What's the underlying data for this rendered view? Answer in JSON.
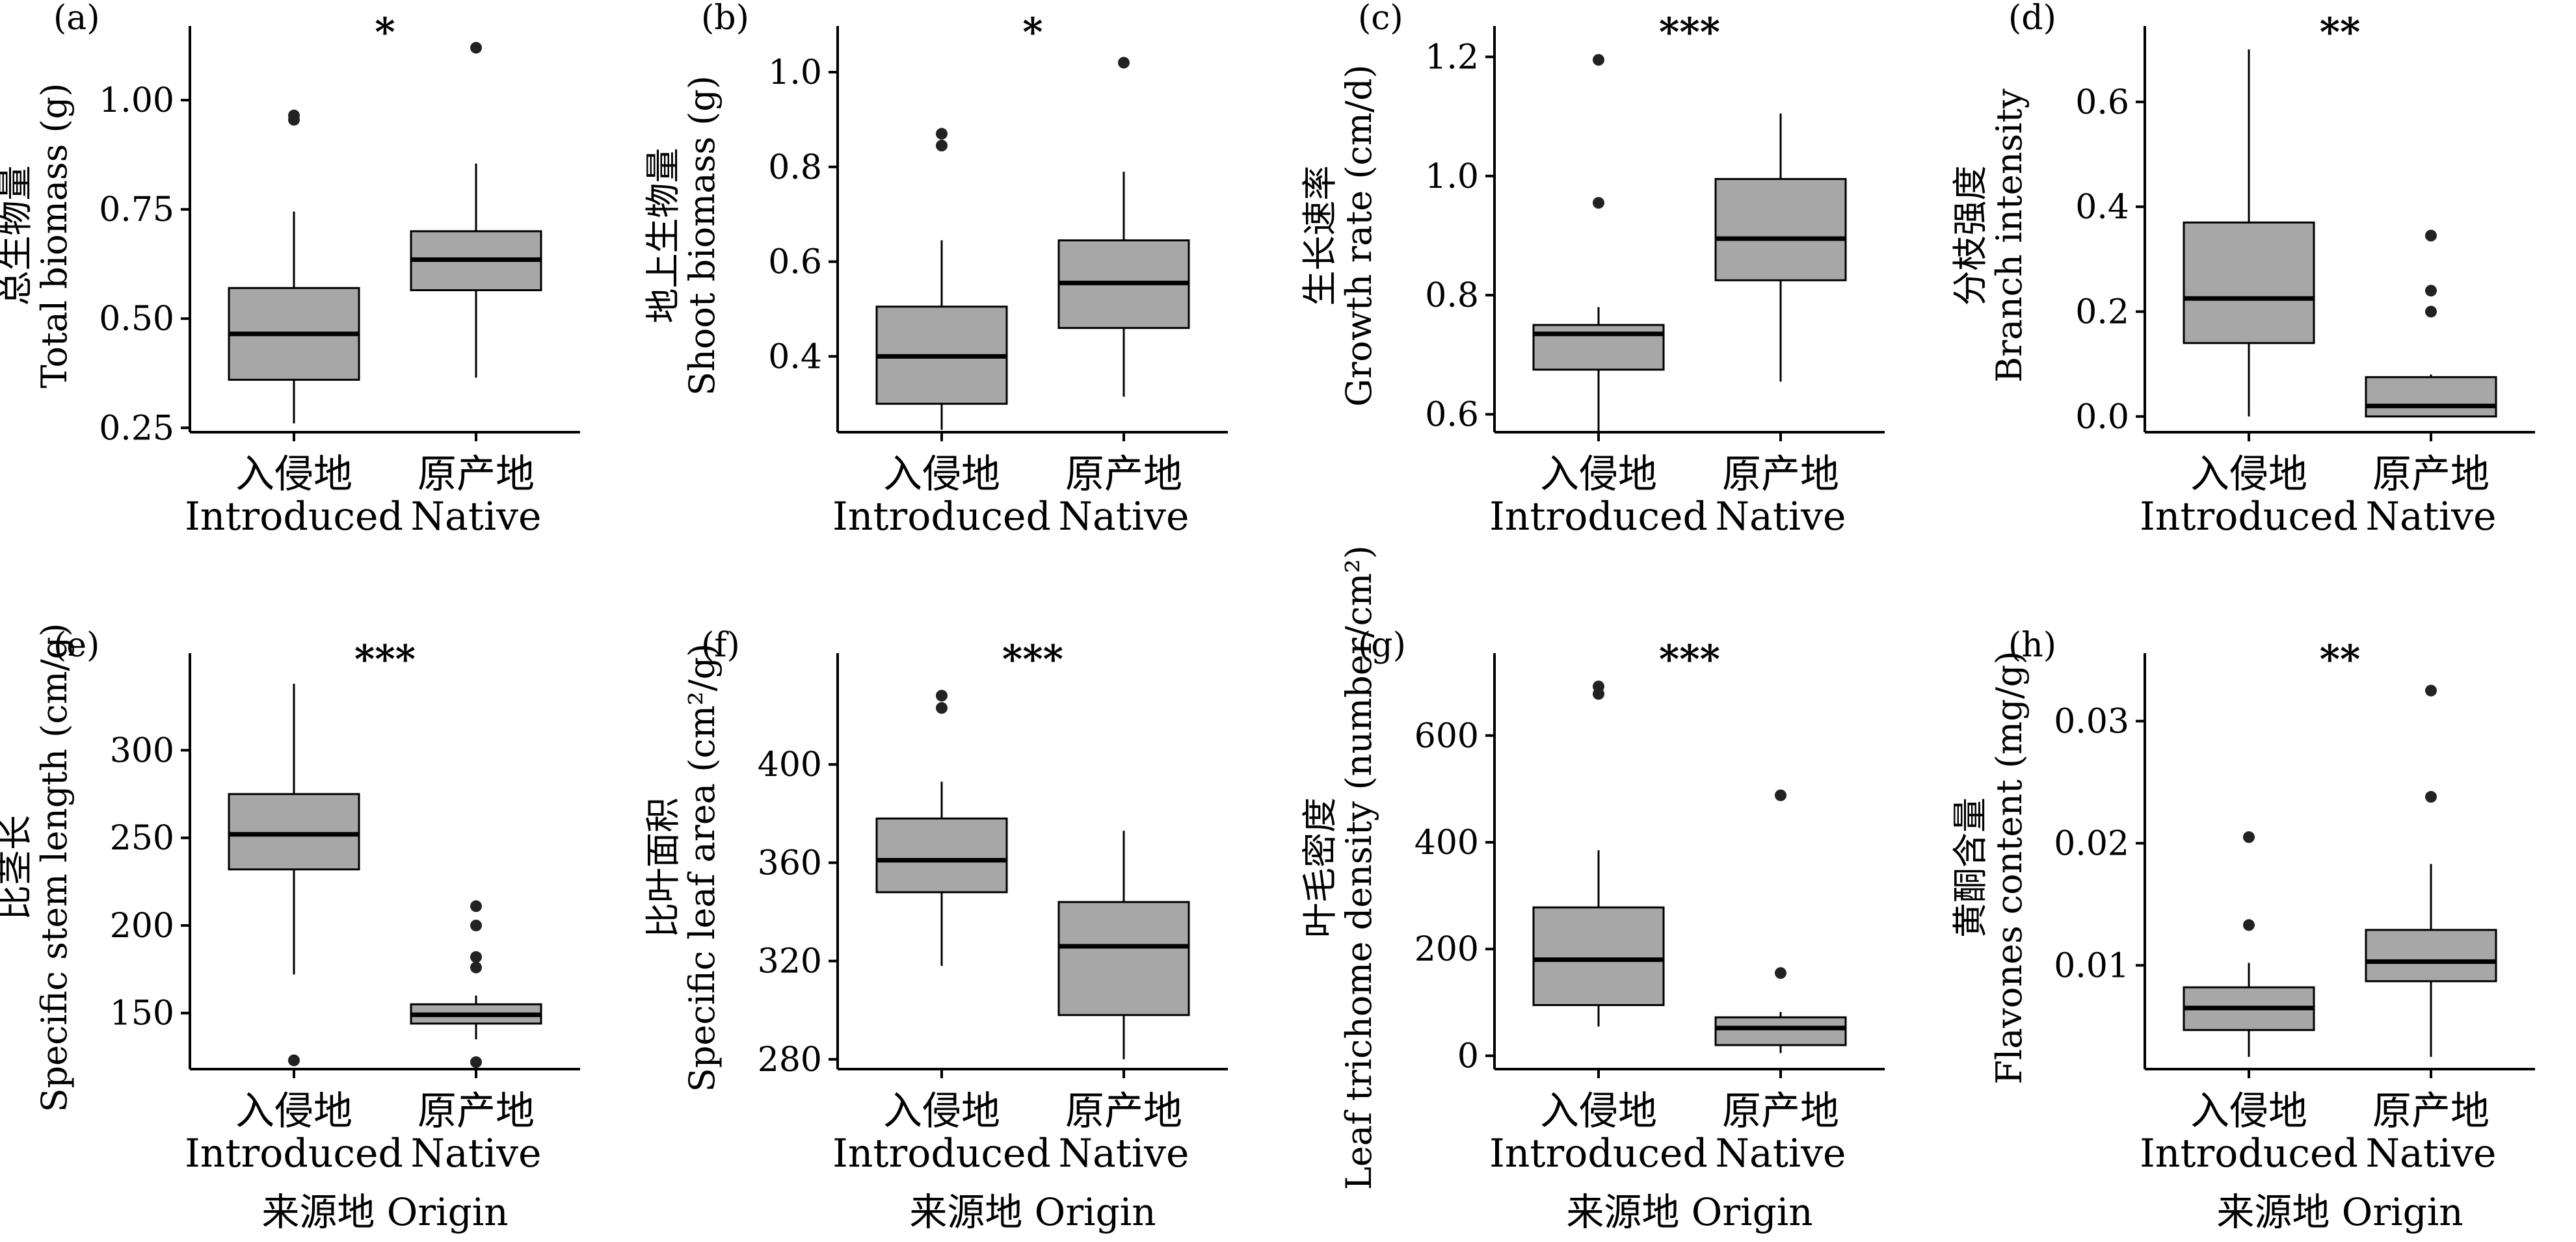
{
  "chart_data": [
    {
      "type": "box",
      "panel_label": "(a)",
      "ylabel_cn": "总生物量",
      "ylabel_en": "Total biomass (g)",
      "significance": "*",
      "ylim": [
        0.24,
        1.14
      ],
      "yticks": [
        0.25,
        0.5,
        0.75,
        1.0
      ],
      "ytick_labels": [
        "0.25",
        "0.50",
        "0.75",
        "1.00"
      ],
      "categories": [
        {
          "cn": "入侵地",
          "en": "Introduced"
        },
        {
          "cn": "原产地",
          "en": "Native"
        }
      ],
      "xlabel": "",
      "boxes": [
        {
          "whisker_low": 0.26,
          "q1": 0.36,
          "median": 0.465,
          "q3": 0.57,
          "whisker_high": 0.745,
          "outliers": [
            0.955,
            0.965
          ]
        },
        {
          "whisker_low": 0.365,
          "q1": 0.565,
          "median": 0.635,
          "q3": 0.7,
          "whisker_high": 0.855,
          "outliers": [
            1.12
          ]
        }
      ]
    },
    {
      "type": "box",
      "panel_label": "(b)",
      "ylabel_cn": "地上生物量",
      "ylabel_en": "Shoot biomass (g)",
      "significance": "*",
      "ylim": [
        0.24,
        1.07
      ],
      "yticks": [
        0.4,
        0.6,
        0.8,
        1.0
      ],
      "ytick_labels": [
        "0.4",
        "0.6",
        "0.8",
        "1.0"
      ],
      "categories": [
        {
          "cn": "入侵地",
          "en": "Introduced"
        },
        {
          "cn": "原产地",
          "en": "Native"
        }
      ],
      "xlabel": "",
      "boxes": [
        {
          "whisker_low": 0.245,
          "q1": 0.3,
          "median": 0.4,
          "q3": 0.505,
          "whisker_high": 0.645,
          "outliers": [
            0.845,
            0.87
          ]
        },
        {
          "whisker_low": 0.315,
          "q1": 0.46,
          "median": 0.555,
          "q3": 0.645,
          "whisker_high": 0.79,
          "outliers": [
            1.02
          ]
        }
      ]
    },
    {
      "type": "box",
      "panel_label": "(c)",
      "ylabel_cn": "生长速率",
      "ylabel_en": "Growth rate (cm/d)",
      "significance": "***",
      "ylim": [
        0.57,
        1.23
      ],
      "yticks": [
        0.6,
        0.8,
        1.0,
        1.2
      ],
      "ytick_labels": [
        "0.6",
        "0.8",
        "1.0",
        "1.2"
      ],
      "categories": [
        {
          "cn": "入侵地",
          "en": "Introduced"
        },
        {
          "cn": "原产地",
          "en": "Native"
        }
      ],
      "xlabel": "",
      "boxes": [
        {
          "whisker_low": 0.555,
          "q1": 0.675,
          "median": 0.735,
          "q3": 0.75,
          "whisker_high": 0.78,
          "outliers": [
            0.955,
            1.195
          ]
        },
        {
          "whisker_low": 0.655,
          "q1": 0.825,
          "median": 0.895,
          "q3": 0.995,
          "whisker_high": 1.105,
          "outliers": []
        }
      ]
    },
    {
      "type": "box",
      "panel_label": "(d)",
      "ylabel_cn": "分枝强度",
      "ylabel_en": "Branch intensity",
      "significance": "**",
      "ylim": [
        -0.03,
        0.72
      ],
      "yticks": [
        0.0,
        0.2,
        0.4,
        0.6
      ],
      "ytick_labels": [
        "0.0",
        "0.2",
        "0.4",
        "0.6"
      ],
      "categories": [
        {
          "cn": "入侵地",
          "en": "Introduced"
        },
        {
          "cn": "原产地",
          "en": "Native"
        }
      ],
      "xlabel": "",
      "boxes": [
        {
          "whisker_low": 0.0,
          "q1": 0.14,
          "median": 0.225,
          "q3": 0.37,
          "whisker_high": 0.7,
          "outliers": []
        },
        {
          "whisker_low": 0.0,
          "q1": 0.0,
          "median": 0.02,
          "q3": 0.075,
          "whisker_high": 0.08,
          "outliers": [
            0.2,
            0.24,
            0.345
          ]
        }
      ]
    },
    {
      "type": "box",
      "panel_label": "(e)",
      "ylabel_cn": "比茎长",
      "ylabel_en": "Specific stem length (cm/g)",
      "significance": "***",
      "ylim": [
        118,
        348
      ],
      "yticks": [
        150,
        200,
        250,
        300
      ],
      "ytick_labels": [
        "150",
        "200",
        "250",
        "300"
      ],
      "categories": [
        {
          "cn": "入侵地",
          "en": "Introduced"
        },
        {
          "cn": "原产地",
          "en": "Native"
        }
      ],
      "xlabel": "来源地 Origin",
      "boxes": [
        {
          "whisker_low": 172,
          "q1": 232,
          "median": 252,
          "q3": 275,
          "whisker_high": 338,
          "outliers": [
            123
          ]
        },
        {
          "whisker_low": 135,
          "q1": 144,
          "median": 149,
          "q3": 155,
          "whisker_high": 160,
          "outliers": [
            122,
            176,
            182,
            200,
            211
          ]
        }
      ]
    },
    {
      "type": "box",
      "panel_label": "(f)",
      "ylabel_cn": "比叶面积",
      "ylabel_en": "Specific leaf area (cm²/g)",
      "significance": "***",
      "ylim": [
        276,
        440
      ],
      "yticks": [
        280,
        320,
        360,
        400
      ],
      "ytick_labels": [
        "280",
        "320",
        "360",
        "400"
      ],
      "categories": [
        {
          "cn": "入侵地",
          "en": "Introduced"
        },
        {
          "cn": "原产地",
          "en": "Native"
        }
      ],
      "xlabel": "来源地 Origin",
      "boxes": [
        {
          "whisker_low": 318,
          "q1": 348,
          "median": 361,
          "q3": 378,
          "whisker_high": 393,
          "outliers": [
            423,
            428
          ]
        },
        {
          "whisker_low": 280,
          "q1": 298,
          "median": 326,
          "q3": 344,
          "whisker_high": 373,
          "outliers": []
        }
      ]
    },
    {
      "type": "box",
      "panel_label": "(g)",
      "ylabel_cn": "叶毛密度",
      "ylabel_en": "Leaf trichome density (number/cm²)",
      "significance": "***",
      "ylim": [
        -25,
        730
      ],
      "yticks": [
        0,
        200,
        400,
        600
      ],
      "ytick_labels": [
        "0",
        "200",
        "400",
        "600"
      ],
      "categories": [
        {
          "cn": "入侵地",
          "en": "Introduced"
        },
        {
          "cn": "原产地",
          "en": "Native"
        }
      ],
      "xlabel": "来源地 Origin",
      "boxes": [
        {
          "whisker_low": 55,
          "q1": 95,
          "median": 180,
          "q3": 278,
          "whisker_high": 385,
          "outliers": [
            678,
            692
          ]
        },
        {
          "whisker_low": 5,
          "q1": 20,
          "median": 52,
          "q3": 72,
          "whisker_high": 82,
          "outliers": [
            155,
            488
          ]
        }
      ]
    },
    {
      "type": "box",
      "panel_label": "(h)",
      "ylabel_cn": "黄酮含量",
      "ylabel_en": "Flavones content (mg/g)",
      "significance": "**",
      "ylim": [
        0.0015,
        0.0345
      ],
      "yticks": [
        0.01,
        0.02,
        0.03
      ],
      "ytick_labels": [
        "0.01",
        "0.02",
        "0.03"
      ],
      "categories": [
        {
          "cn": "入侵地",
          "en": "Introduced"
        },
        {
          "cn": "原产地",
          "en": "Native"
        }
      ],
      "xlabel": "来源地 Origin",
      "boxes": [
        {
          "whisker_low": 0.0025,
          "q1": 0.0047,
          "median": 0.0065,
          "q3": 0.0082,
          "whisker_high": 0.0102,
          "outliers": [
            0.0133,
            0.0205
          ]
        },
        {
          "whisker_low": 0.0025,
          "q1": 0.0087,
          "median": 0.0103,
          "q3": 0.0129,
          "whisker_high": 0.0183,
          "outliers": [
            0.0238,
            0.0325
          ]
        }
      ]
    }
  ]
}
